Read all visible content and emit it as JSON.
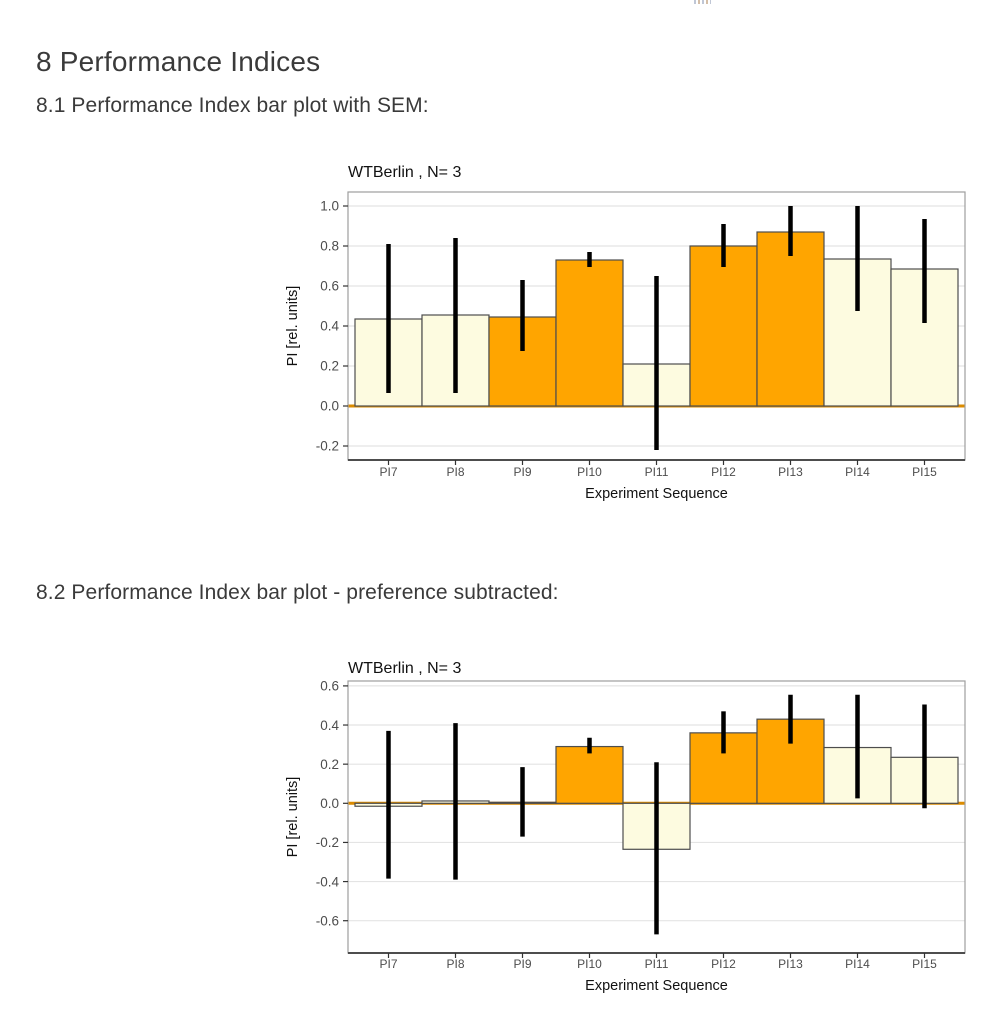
{
  "page": {
    "section_title": "8 Performance Indices",
    "subsection_1": "8.1 Performance Index bar plot with SEM:",
    "subsection_2": "8.2 Performance Index bar plot - preference subtracted:"
  },
  "colors": {
    "orange": "#FFA500",
    "cream": "#FDFBE0",
    "bar_border": "#4D4D4D",
    "grid": "#E4E4E4",
    "panel_border": "#9E9E9E",
    "axis_line": "#4D4D4D",
    "tick": "#333333",
    "zero_line": "#DB8B00",
    "axis_text": "#4D4D4D",
    "chart_text": "#111111",
    "error": "#000000"
  },
  "chart_data": [
    {
      "type": "bar",
      "title": "WTBerlin , N= 3",
      "xlabel": "Experiment Sequence",
      "ylabel": "PI [rel. units]",
      "categories": [
        "PI7",
        "PI8",
        "PI9",
        "PI10",
        "PI11",
        "PI12",
        "PI13",
        "PI14",
        "PI15"
      ],
      "values": [
        0.435,
        0.455,
        0.445,
        0.73,
        0.21,
        0.8,
        0.87,
        0.735,
        0.685
      ],
      "error_low": [
        0.065,
        0.065,
        0.275,
        0.695,
        -0.22,
        0.695,
        0.75,
        0.475,
        0.415
      ],
      "error_high": [
        0.81,
        0.84,
        0.63,
        0.77,
        0.65,
        0.91,
        1.0,
        1.0,
        0.935
      ],
      "bar_colors": [
        "cream",
        "cream",
        "orange",
        "orange",
        "cream",
        "orange",
        "orange",
        "cream",
        "cream"
      ],
      "ylim": [
        -0.27,
        1.07
      ],
      "yticks": [
        -0.2,
        0.0,
        0.2,
        0.4,
        0.6,
        0.8,
        1.0
      ],
      "grid": "major-horizontal",
      "legend": "none",
      "zero_line": true
    },
    {
      "type": "bar",
      "title": "WTBerlin , N= 3",
      "xlabel": "Experiment Sequence",
      "ylabel": "PI [rel. units]",
      "categories": [
        "PI7",
        "PI8",
        "PI9",
        "PI10",
        "PI11",
        "PI12",
        "PI13",
        "PI14",
        "PI15"
      ],
      "values": [
        -0.015,
        0.012,
        0.005,
        0.29,
        -0.235,
        0.36,
        0.43,
        0.285,
        0.235
      ],
      "error_low": [
        -0.385,
        -0.39,
        -0.17,
        0.255,
        -0.67,
        0.255,
        0.305,
        0.025,
        -0.025
      ],
      "error_high": [
        0.37,
        0.41,
        0.185,
        0.335,
        0.21,
        0.47,
        0.555,
        0.555,
        0.505
      ],
      "bar_colors": [
        "cream",
        "cream",
        "orange",
        "orange",
        "cream",
        "orange",
        "orange",
        "cream",
        "cream"
      ],
      "ylim": [
        -0.765,
        0.625
      ],
      "yticks": [
        -0.6,
        -0.4,
        -0.2,
        0.0,
        0.2,
        0.4,
        0.6
      ],
      "grid": "major-horizontal",
      "legend": "none",
      "zero_line": true
    }
  ]
}
